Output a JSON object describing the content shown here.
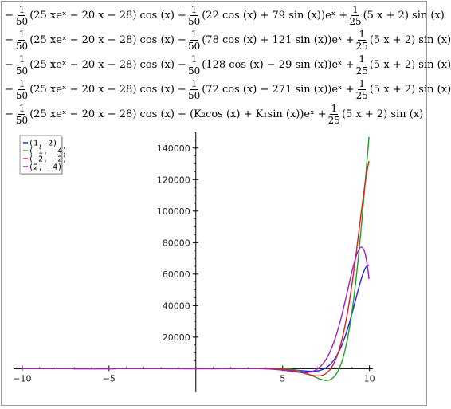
{
  "formulas": [
    {
      "pre_sign": "−",
      "f1_num": "1",
      "f1_den": "50",
      "t1": "(25 xeˣ − 20 x − 28) cos (x) +",
      "f2_sign": "",
      "f2_num": "1",
      "f2_den": "50",
      "t2": "(22 cos (x) + 79 sin (x))eˣ +",
      "f3_num": "1",
      "f3_den": "25",
      "t3": "(5 x + 2) sin (x)"
    },
    {
      "pre_sign": "−",
      "f1_num": "1",
      "f1_den": "50",
      "t1": "(25 xeˣ − 20 x − 28) cos (x) −",
      "f2_sign": "",
      "f2_num": "1",
      "f2_den": "50",
      "t2": "(78 cos (x) + 121 sin (x))eˣ +",
      "f3_num": "1",
      "f3_den": "25",
      "t3": "(5 x + 2) sin (x)"
    },
    {
      "pre_sign": "−",
      "f1_num": "1",
      "f1_den": "50",
      "t1": "(25 xeˣ − 20 x − 28) cos (x) −",
      "f2_sign": "",
      "f2_num": "1",
      "f2_den": "50",
      "t2": "(128 cos (x) − 29 sin (x))eˣ +",
      "f3_num": "1",
      "f3_den": "25",
      "t3": "(5 x + 2) sin (x)"
    },
    {
      "pre_sign": "−",
      "f1_num": "1",
      "f1_den": "50",
      "t1": "(25 xeˣ − 20 x − 28) cos (x) −",
      "f2_sign": "",
      "f2_num": "1",
      "f2_den": "50",
      "t2": "(72 cos (x) − 271 sin (x))eˣ +",
      "f3_num": "1",
      "f3_den": "25",
      "t3": "(5 x + 2) sin (x)"
    }
  ],
  "formula_general": {
    "pre_sign": "−",
    "f1_num": "1",
    "f1_den": "50",
    "t1": "(25 xeˣ − 20 x − 28) cos (x) + (K₂cos (x) + K₁sin (x))eˣ +",
    "f3_num": "1",
    "f3_den": "25",
    "t3": "(5 x + 2) sin (x)"
  },
  "chart_data": {
    "type": "line",
    "xlim": [
      -10.5,
      10.2
    ],
    "ylim": [
      -15000,
      150000
    ],
    "x_ticks": [
      -10,
      -5,
      5,
      10
    ],
    "y_ticks": [
      20000,
      40000,
      60000,
      80000,
      100000,
      120000,
      140000
    ],
    "grid": false,
    "legend_position": "top-left",
    "series": [
      {
        "name": "(1, 2)",
        "color": "#2020ee",
        "constants": [
          22,
          79
        ]
      },
      {
        "name": "(-1, -4)",
        "color": "#2a9a2a",
        "constants": [
          -78,
          -121
        ]
      },
      {
        "name": "(-2, -2)",
        "color": "#e02020",
        "constants": [
          -128,
          29
        ]
      },
      {
        "name": "(2, -4)",
        "color": "#a020c0",
        "constants": [
          -72,
          271
        ]
      }
    ]
  }
}
